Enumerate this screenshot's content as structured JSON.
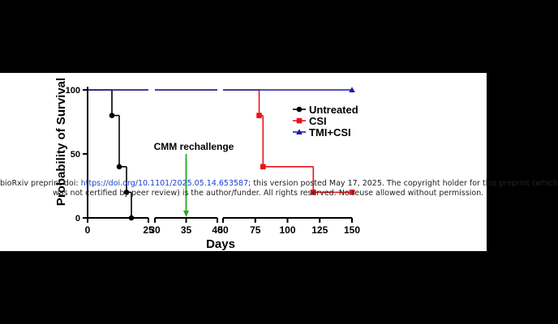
{
  "watermark": {
    "prefix": "bioRxiv preprint doi: ",
    "doi_link": "https://doi.org/10.1101/2025.05.14.653587",
    "line1_rest": "; this version posted May 17, 2025. The copyright holder for this preprint (which",
    "line2": "was not certified by peer review) is the author/funder. All rights reserved. No reuse allowed without permission."
  },
  "chart_data": {
    "type": "line",
    "step": true,
    "title": "",
    "xlabel": "Days",
    "ylabel": "Probability of Survival",
    "ylim": [
      0,
      100
    ],
    "yticks": [
      "0",
      "50",
      "100"
    ],
    "x_segments": [
      {
        "range": [
          0,
          25
        ],
        "ticks": [
          0,
          25
        ]
      },
      {
        "range": [
          30,
          40
        ],
        "ticks": [
          30,
          35,
          40
        ]
      },
      {
        "range": [
          50,
          150
        ],
        "ticks": [
          50,
          75,
          100,
          125,
          150
        ]
      }
    ],
    "annotation": {
      "text": "CMM rechallenge",
      "x": 35,
      "color": "#22aa22"
    },
    "legend_position": "right",
    "series": [
      {
        "name": "Untreated",
        "color": "#000000",
        "marker": "circle",
        "points": [
          [
            0,
            100
          ],
          [
            10,
            80
          ],
          [
            13,
            40
          ],
          [
            16,
            20
          ],
          [
            18,
            0
          ]
        ]
      },
      {
        "name": "CSI",
        "color": "#e8141a",
        "marker": "square",
        "points": [
          [
            0,
            100
          ],
          [
            78,
            80
          ],
          [
            81,
            40
          ],
          [
            120,
            20
          ],
          [
            150,
            20
          ]
        ]
      },
      {
        "name": "TMI+CSI",
        "color": "#1a1a9e",
        "marker": "triangle",
        "points": [
          [
            0,
            100
          ],
          [
            150,
            100
          ]
        ]
      }
    ]
  }
}
